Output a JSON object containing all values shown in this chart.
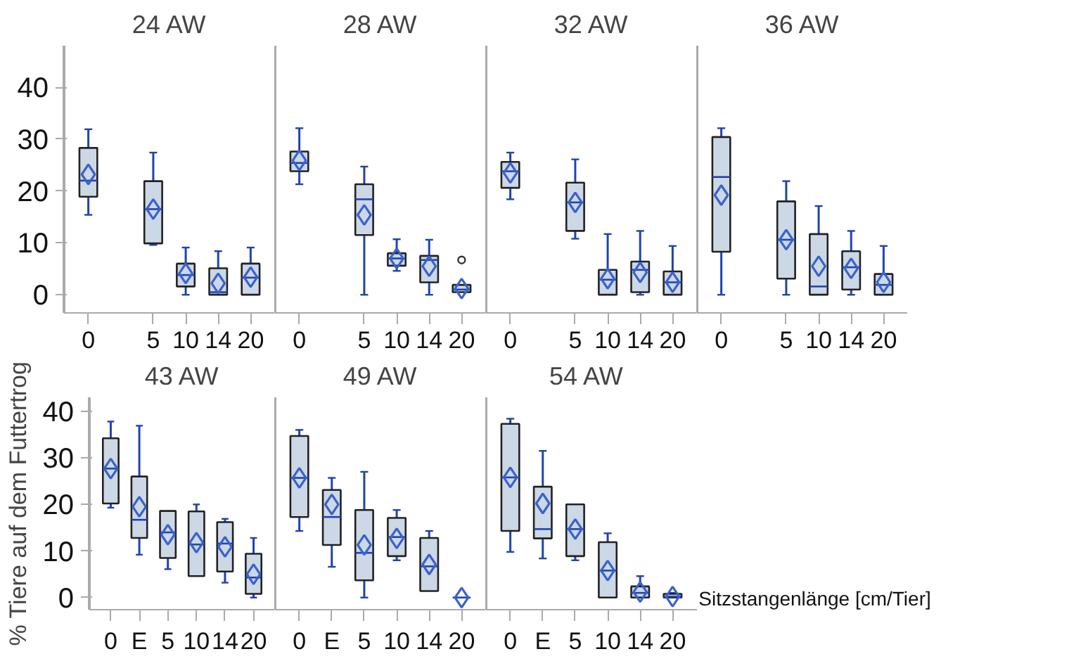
{
  "chart_data": [
    {
      "type": "box",
      "title": "24 AW",
      "categories": [
        "0",
        null,
        "5",
        "10",
        "14",
        "20"
      ],
      "color": "#cdd8e6",
      "marker": "diamond",
      "grid": false,
      "ylim": [
        -3.5,
        48
      ],
      "yticks": [
        0,
        10,
        20,
        30,
        40
      ],
      "boxes": [
        {
          "low": 15.4,
          "q1": 18.9,
          "median": 22,
          "q3": 28.3,
          "high": 31.9,
          "mean": 23.2
        },
        null,
        {
          "low": 9.6,
          "q1": 9.9,
          "median": 16.5,
          "q3": 21.9,
          "high": 27.4,
          "mean": 16.5
        },
        {
          "low": 0,
          "q1": 1.6,
          "median": 3.8,
          "q3": 6.0,
          "high": 9.1,
          "mean": 4.1
        },
        {
          "low": 0,
          "q1": 0,
          "median": 0.5,
          "q3": 5.1,
          "high": 8.4,
          "mean": 2.2
        },
        {
          "low": 0,
          "q1": 0,
          "median": 3.3,
          "q3": 6.0,
          "high": 9.1,
          "mean": 3.4
        }
      ]
    },
    {
      "type": "box",
      "title": "28 AW",
      "categories": [
        "0",
        null,
        "5",
        "10",
        "14",
        "20"
      ],
      "color": "#cdd8e6",
      "marker": "diamond",
      "grid": false,
      "ylim": [
        -3.5,
        48
      ],
      "tick_labels": "x",
      "boxes": [
        {
          "low": 21.3,
          "q1": 23.8,
          "median": 25.4,
          "q3": 27.6,
          "high": 32.1,
          "mean": 25.9
        },
        null,
        {
          "low": 0,
          "q1": 11.5,
          "median": 18.4,
          "q3": 21.3,
          "high": 24.7,
          "mean": 15.4
        },
        {
          "low": 4.6,
          "q1": 5.6,
          "median": 7.0,
          "q3": 8.0,
          "high": 10.7,
          "mean": 7.0
        },
        {
          "low": 0,
          "q1": 2.4,
          "median": 6.7,
          "q3": 7.5,
          "high": 10.6,
          "mean": 5.5
        },
        {
          "low": 0.5,
          "q1": 0.5,
          "median": 1.0,
          "q3": 1.9,
          "high": 1.9,
          "mean": 1.2,
          "outliers": [
            6.7
          ]
        }
      ]
    },
    {
      "type": "box",
      "title": "32 AW",
      "categories": [
        "0",
        null,
        "5",
        "10",
        "14",
        "20"
      ],
      "color": "#cdd8e6",
      "marker": "diamond",
      "grid": false,
      "ylim": [
        -3.5,
        48
      ],
      "tick_labels": "x",
      "boxes": [
        {
          "low": 18.4,
          "q1": 20.6,
          "median": 23.8,
          "q3": 25.6,
          "high": 27.4,
          "mean": 23.5
        },
        null,
        {
          "low": 10.8,
          "q1": 12.3,
          "median": 17.8,
          "q3": 21.6,
          "high": 26.1,
          "mean": 17.8
        },
        {
          "low": 0,
          "q1": 0,
          "median": 2.9,
          "q3": 4.8,
          "high": 11.7,
          "mean": 3.1
        },
        {
          "low": 0,
          "q1": 0.5,
          "median": 4.8,
          "q3": 6.4,
          "high": 12.3,
          "mean": 4.3
        },
        {
          "low": 0,
          "q1": 0,
          "median": 2.4,
          "q3": 4.5,
          "high": 9.4,
          "mean": 2.4
        }
      ]
    },
    {
      "type": "box",
      "title": "36 AW",
      "categories": [
        "0",
        null,
        "5",
        "10",
        "14",
        "20"
      ],
      "color": "#cdd8e6",
      "marker": "diamond",
      "grid": false,
      "ylim": [
        -3.5,
        48
      ],
      "tick_labels": "x",
      "boxes": [
        {
          "low": 0,
          "q1": 8.3,
          "median": 22.7,
          "q3": 30.4,
          "high": 32.1,
          "mean": 19.2
        },
        null,
        {
          "low": 0,
          "q1": 3.1,
          "median": 10.6,
          "q3": 18.0,
          "high": 21.9,
          "mean": 10.6
        },
        {
          "low": 0,
          "q1": 0,
          "median": 1.6,
          "q3": 11.7,
          "high": 17.1,
          "mean": 5.5
        },
        {
          "low": 0,
          "q1": 1.0,
          "median": 5.3,
          "q3": 8.4,
          "high": 12.3,
          "mean": 5.1
        },
        {
          "low": 0,
          "q1": 0,
          "median": 1.9,
          "q3": 4.0,
          "high": 9.4,
          "mean": 2.4
        }
      ]
    },
    {
      "type": "box",
      "title": "43 AW",
      "ylabel": "% Tiere auf dem Futtertrog",
      "categories": [
        "0",
        "E",
        "5",
        "10",
        "14",
        "20"
      ],
      "color": "#cdd8e6",
      "marker": "diamond",
      "grid": false,
      "ylim": [
        -2.6,
        43
      ],
      "yticks": [
        0,
        10,
        20,
        30,
        40
      ],
      "boxes": [
        {
          "low": 19.3,
          "q1": 20.2,
          "median": 27.7,
          "q3": 34.2,
          "high": 37.8,
          "mean": 27.7
        },
        {
          "low": 9.2,
          "q1": 12.8,
          "median": 16.7,
          "q3": 26.0,
          "high": 36.9,
          "mean": 19.5
        },
        {
          "low": 6.1,
          "q1": 8.5,
          "median": 14.0,
          "q3": 18.6,
          "high": 18.6,
          "mean": 13.5
        },
        {
          "low": 4.6,
          "q1": 4.6,
          "median": 11.4,
          "q3": 18.5,
          "high": 20.0,
          "mean": 11.8
        },
        {
          "low": 3.2,
          "q1": 5.6,
          "median": 11.6,
          "q3": 16.2,
          "high": 16.9,
          "mean": 10.9
        },
        {
          "low": 0,
          "q1": 0.8,
          "median": 4.3,
          "q3": 9.4,
          "high": 12.8,
          "mean": 5.0
        }
      ]
    },
    {
      "type": "box",
      "title": "49 AW",
      "categories": [
        "0",
        "E",
        "5",
        "10",
        "14",
        "20"
      ],
      "color": "#cdd8e6",
      "marker": "diamond",
      "grid": false,
      "ylim": [
        -2.6,
        43
      ],
      "tick_labels": "x",
      "boxes": [
        {
          "low": 14.3,
          "q1": 17.3,
          "median": 25.7,
          "q3": 34.7,
          "high": 36.0,
          "mean": 25.7
        },
        {
          "low": 6.6,
          "q1": 11.3,
          "median": 17.3,
          "q3": 23.1,
          "high": 25.7,
          "mean": 20.0
        },
        {
          "low": 0,
          "q1": 3.7,
          "median": 9.6,
          "q3": 18.8,
          "high": 27.0,
          "mean": 11.3
        },
        {
          "low": 8.0,
          "q1": 8.9,
          "median": 13.0,
          "q3": 17.1,
          "high": 18.8,
          "mean": 12.7
        },
        {
          "low": 1.4,
          "q1": 1.4,
          "median": 6.7,
          "q3": 12.8,
          "high": 14.3,
          "mean": 7.1
        },
        {
          "low": 0,
          "q1": 0,
          "median": 0,
          "q3": 0,
          "high": 0,
          "mean": 0
        }
      ]
    },
    {
      "type": "box",
      "title": "54 AW",
      "xlabel": "Sitzstangenlänge [cm/Tier]",
      "categories": [
        "0",
        "E",
        "5",
        "10",
        "14",
        "20"
      ],
      "color": "#cdd8e6",
      "marker": "diamond",
      "grid": false,
      "ylim": [
        -2.6,
        43
      ],
      "tick_labels": "x",
      "boxes": [
        {
          "low": 9.8,
          "q1": 14.3,
          "median": 25.8,
          "q3": 37.3,
          "high": 38.4,
          "mean": 25.8
        },
        {
          "low": 8.4,
          "q1": 12.7,
          "median": 14.7,
          "q3": 23.8,
          "high": 31.5,
          "mean": 20.2
        },
        {
          "low": 8.0,
          "q1": 8.9,
          "median": 14.7,
          "q3": 20.0,
          "high": 20.0,
          "mean": 14.7
        },
        {
          "low": 0,
          "q1": 0,
          "median": 5.8,
          "q3": 11.9,
          "high": 13.8,
          "mean": 5.8
        },
        {
          "low": 0,
          "q1": 0,
          "median": 1.0,
          "q3": 2.4,
          "high": 4.6,
          "mean": 1.2
        },
        {
          "low": 0,
          "q1": 0,
          "median": 0.2,
          "q3": 0.8,
          "high": 1.0,
          "mean": 0.2
        }
      ]
    }
  ]
}
